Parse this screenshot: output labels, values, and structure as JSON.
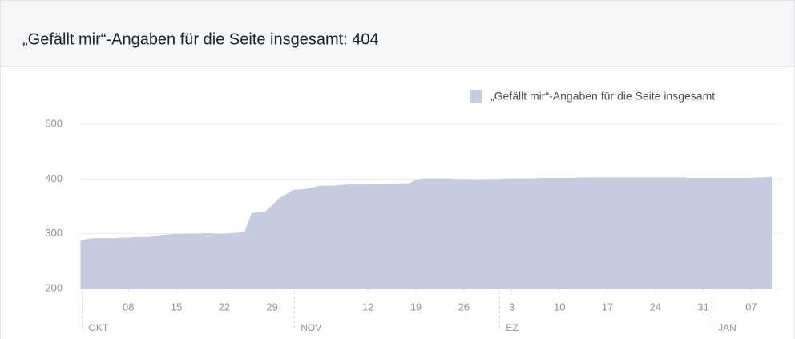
{
  "chart_data": {
    "type": "area",
    "title": "„Gefällt mir“-Angaben für die Seite insgesamt: 404",
    "legend": "top-right",
    "grid": true,
    "ylim": [
      200,
      500
    ],
    "yticks": [
      200,
      300,
      400,
      500
    ],
    "xlim": [
      0,
      101
    ],
    "xticks": [
      {
        "value": 7,
        "label": "08"
      },
      {
        "value": 14,
        "label": "15"
      },
      {
        "value": 21,
        "label": "22"
      },
      {
        "value": 28,
        "label": "29"
      },
      {
        "value": 42,
        "label": "12"
      },
      {
        "value": 49,
        "label": "19"
      },
      {
        "value": 56,
        "label": "26"
      },
      {
        "value": 63,
        "label": "3"
      },
      {
        "value": 70,
        "label": "10"
      },
      {
        "value": 77,
        "label": "17"
      },
      {
        "value": 84,
        "label": "24"
      },
      {
        "value": 91,
        "label": "31"
      },
      {
        "value": 98,
        "label": "07"
      }
    ],
    "month_ticks": [
      {
        "value": 0,
        "label": "OKT"
      },
      {
        "value": 31,
        "label": "NOV"
      },
      {
        "value": 61,
        "label": "EZ"
      },
      {
        "value": 92,
        "label": "JAN"
      }
    ],
    "x": [
      0,
      1,
      2,
      3,
      4,
      5,
      6,
      7,
      8,
      9,
      10,
      11,
      12,
      13,
      14,
      15,
      16,
      17,
      18,
      19,
      20,
      21,
      22,
      23,
      24,
      25,
      26,
      27,
      28,
      29,
      30,
      31,
      32,
      33,
      34,
      35,
      36,
      37,
      38,
      39,
      40,
      41,
      42,
      43,
      44,
      45,
      46,
      47,
      48,
      49,
      50,
      51,
      52,
      53,
      54,
      55,
      56,
      57,
      58,
      59,
      60,
      61,
      62,
      63,
      64,
      65,
      66,
      67,
      68,
      69,
      70,
      71,
      72,
      73,
      74,
      75,
      76,
      77,
      78,
      79,
      80,
      81,
      82,
      83,
      84,
      85,
      86,
      87,
      88,
      89,
      90,
      91,
      92,
      93,
      94,
      95,
      96,
      97,
      98,
      99,
      100,
      101
    ],
    "series": [
      {
        "name": "„Gefällt mir“-Angaben für die Seite insgesamt",
        "color": "#c5cce0",
        "values": [
          287,
          291,
          292,
          292,
          292,
          292,
          293,
          293,
          294,
          294,
          294,
          296,
          298,
          299,
          300,
          300,
          300,
          300,
          301,
          301,
          300,
          300,
          301,
          302,
          304,
          338,
          339,
          341,
          352,
          365,
          372,
          380,
          381,
          382,
          385,
          388,
          388,
          388,
          389,
          390,
          390,
          390,
          390,
          390,
          391,
          391,
          391,
          392,
          392,
          399,
          401,
          401,
          401,
          401,
          401,
          400,
          400,
          400,
          399,
          400,
          400,
          400,
          401,
          401,
          401,
          401,
          401,
          402,
          402,
          402,
          402,
          402,
          402,
          403,
          403,
          403,
          403,
          403,
          403,
          403,
          403,
          403,
          403,
          403,
          403,
          403,
          403,
          403,
          403,
          402,
          402,
          402,
          402,
          402,
          402,
          402,
          402,
          402,
          402,
          403,
          403,
          404
        ]
      }
    ]
  }
}
